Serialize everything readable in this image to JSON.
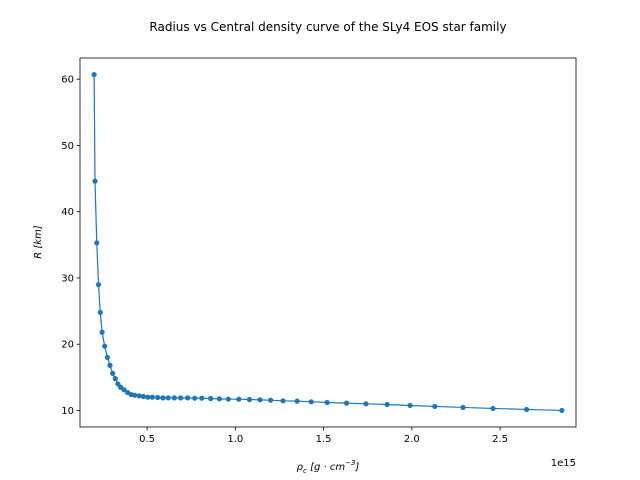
{
  "chart_data": {
    "type": "line",
    "title": "Radius vs Central density curve of the SLy4 EOS star family",
    "xlabel_parts": [
      "ρ",
      "c",
      " [g · cm",
      "−3",
      "]"
    ],
    "ylabel_parts": [
      "R",
      " [km]"
    ],
    "x_offset_label": "1e15",
    "xlim": [
      0.12,
      2.93
    ],
    "ylim": [
      7.5,
      63.2
    ],
    "xticks": [
      0.5,
      1.0,
      1.5,
      2.0,
      2.5
    ],
    "xtick_labels": [
      "0.5",
      "1.0",
      "1.5",
      "2.0",
      "2.5"
    ],
    "yticks": [
      10,
      20,
      30,
      40,
      50,
      60
    ],
    "ytick_labels": [
      "10",
      "20",
      "30",
      "40",
      "50",
      "60"
    ],
    "marker": "circle",
    "grid": false,
    "colors": {
      "series": "#1f77b4",
      "axes": "#000000",
      "background": "#ffffff"
    },
    "series": [
      {
        "x": [
          0.2,
          0.205,
          0.215,
          0.225,
          0.235,
          0.245,
          0.26,
          0.275,
          0.29,
          0.305,
          0.32,
          0.335,
          0.35,
          0.37,
          0.39,
          0.41,
          0.43,
          0.455,
          0.48,
          0.505,
          0.53,
          0.56,
          0.59,
          0.62,
          0.655,
          0.69,
          0.73,
          0.77,
          0.81,
          0.86,
          0.91,
          0.96,
          1.02,
          1.08,
          1.14,
          1.2,
          1.27,
          1.35,
          1.43,
          1.52,
          1.63,
          1.74,
          1.86,
          1.99,
          2.13,
          2.29,
          2.46,
          2.65,
          2.85
        ],
        "y": [
          60.7,
          44.6,
          35.3,
          29.0,
          24.8,
          21.8,
          19.7,
          18.0,
          16.8,
          15.6,
          14.8,
          14.0,
          13.5,
          13.1,
          12.7,
          12.4,
          12.3,
          12.2,
          12.1,
          12.0,
          12.0,
          11.95,
          11.9,
          11.9,
          11.9,
          11.9,
          11.9,
          11.85,
          11.85,
          11.8,
          11.75,
          11.7,
          11.7,
          11.65,
          11.6,
          11.55,
          11.45,
          11.4,
          11.3,
          11.2,
          11.1,
          11.0,
          10.9,
          10.75,
          10.6,
          10.45,
          10.3,
          10.15,
          10.0
        ]
      }
    ]
  }
}
